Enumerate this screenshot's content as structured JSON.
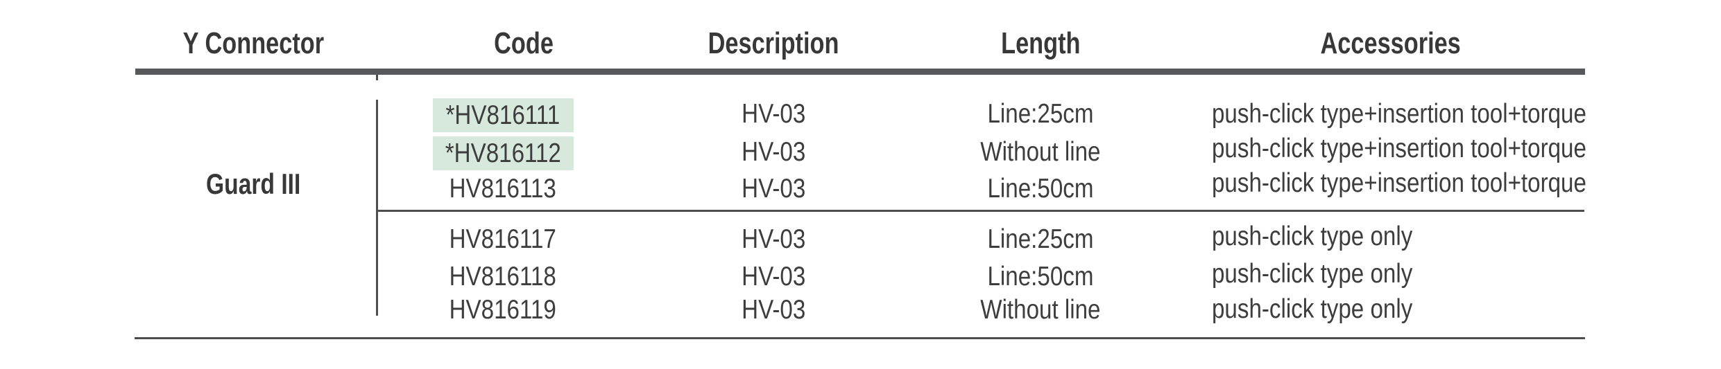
{
  "table": {
    "columns": [
      {
        "label": "Y Connector"
      },
      {
        "label": "Code"
      },
      {
        "label": "Description"
      },
      {
        "label": "Length"
      },
      {
        "label": "Accessories"
      }
    ],
    "group_label": "Guard III",
    "rows": [
      {
        "code": "*HV816111",
        "description": "HV-03",
        "length": "Line:25cm",
        "accessories": "push-click type+insertion tool+torque",
        "highlighted": true
      },
      {
        "code": "*HV816112",
        "description": "HV-03",
        "length": "Without line",
        "accessories": "push-click type+insertion tool+torque",
        "highlighted": true
      },
      {
        "code": "HV816113",
        "description": "HV-03",
        "length": "Line:50cm",
        "accessories": "push-click type+insertion tool+torque",
        "highlighted": false
      },
      {
        "code": "HV816117",
        "description": "HV-03",
        "length": "Line:25cm",
        "accessories": "push-click type only",
        "highlighted": false
      },
      {
        "code": "HV816118",
        "description": "HV-03",
        "length": "Line:50cm",
        "accessories": "push-click type only",
        "highlighted": false
      },
      {
        "code": "HV816119",
        "description": "HV-03",
        "length": "Without line",
        "accessories": "push-click type only",
        "highlighted": false
      }
    ]
  },
  "colors": {
    "highlight_green": "#d7e8dc",
    "rule_dark": "#57585a",
    "line_gray": "#4d4d4d",
    "text": "#3d3d3d"
  }
}
